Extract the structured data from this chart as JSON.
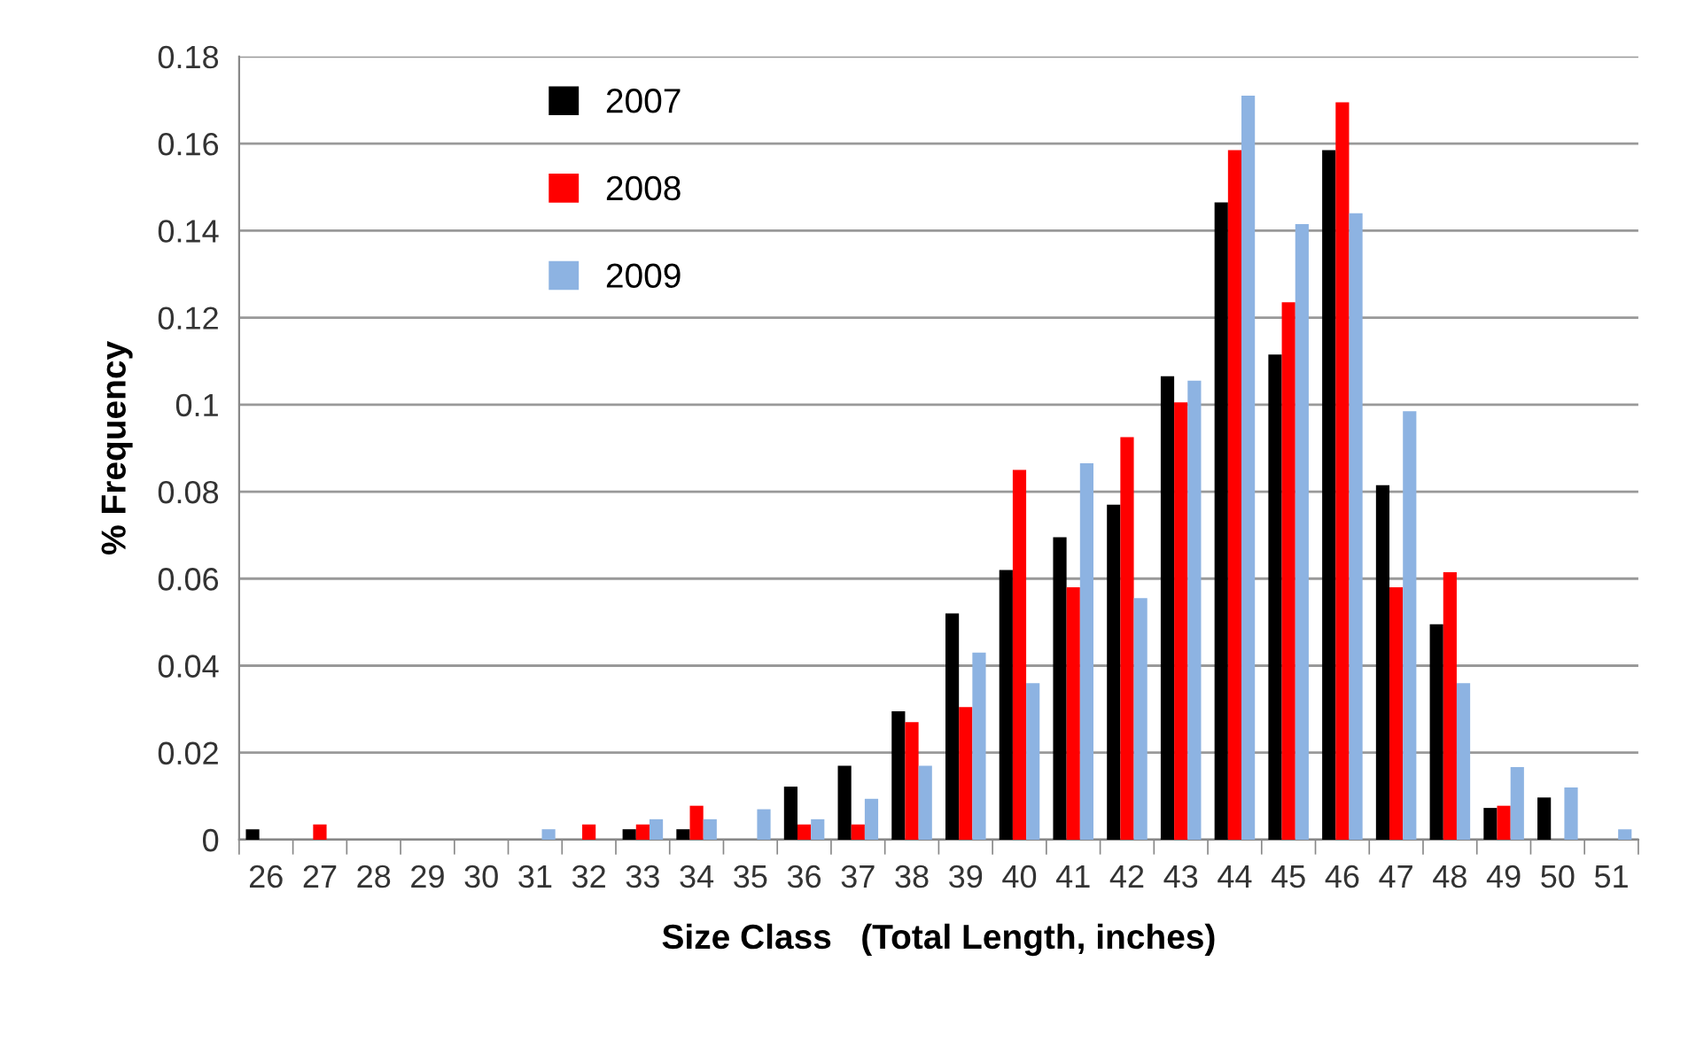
{
  "chart_data": {
    "type": "bar",
    "xlabel": "Size Class   (Total Length, inches)",
    "ylabel": "% Frequency",
    "categories": [
      "26",
      "27",
      "28",
      "29",
      "30",
      "31",
      "32",
      "33",
      "34",
      "35",
      "36",
      "37",
      "38",
      "39",
      "40",
      "41",
      "42",
      "43",
      "44",
      "45",
      "46",
      "47",
      "48",
      "49",
      "50",
      "51"
    ],
    "series": [
      {
        "name": "2007",
        "color": "#000000",
        "values": [
          0.0024,
          0,
          0,
          0,
          0,
          0,
          0,
          0.0024,
          0.0024,
          0,
          0.0122,
          0.017,
          0.0295,
          0.052,
          0.062,
          0.0695,
          0.077,
          0.1065,
          0.1465,
          0.1115,
          0.1585,
          0.0815,
          0.0495,
          0.0073,
          0.0097,
          0
        ]
      },
      {
        "name": "2008",
        "color": "#ff0000",
        "values": [
          0,
          0.0035,
          0,
          0,
          0,
          0,
          0.0035,
          0.0035,
          0.0078,
          0,
          0.0035,
          0.0035,
          0.027,
          0.0305,
          0.085,
          0.058,
          0.0925,
          0.1005,
          0.1585,
          0.1235,
          0.1695,
          0.058,
          0.0615,
          0.0078,
          0,
          0
        ]
      },
      {
        "name": "2009",
        "color": "#8db3e2",
        "values": [
          0,
          0,
          0,
          0,
          0,
          0.0024,
          0,
          0.0047,
          0.0047,
          0.007,
          0.0047,
          0.0094,
          0.017,
          0.043,
          0.036,
          0.0865,
          0.0555,
          0.1055,
          0.171,
          0.1415,
          0.144,
          0.0985,
          0.036,
          0.0167,
          0.012,
          0.0024
        ]
      }
    ],
    "ylim": [
      0,
      0.18
    ],
    "yticks": [
      0,
      0.02,
      0.04,
      0.06,
      0.08,
      0.1,
      0.12,
      0.14,
      0.16,
      0.18
    ],
    "grid": "y",
    "legend": "top left"
  }
}
